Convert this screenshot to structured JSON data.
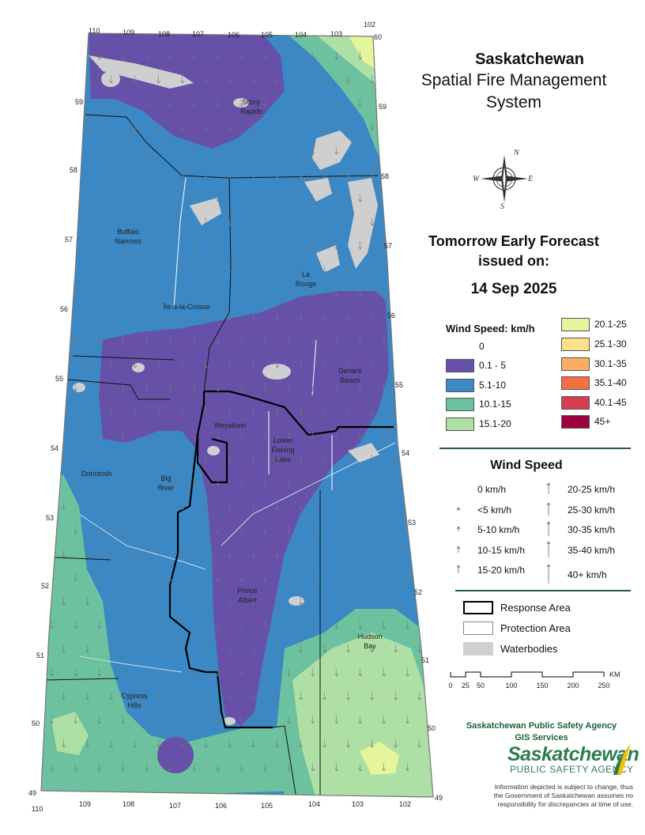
{
  "title": {
    "line1": "Saskatchewan",
    "line2": "Spatial Fire Management",
    "line3": "System"
  },
  "forecast": {
    "line1": "Tomorrow Early Forecast",
    "line2": "issued on:",
    "date": "14 Sep 2025"
  },
  "compass": {
    "n": "N",
    "s": "S",
    "e": "E",
    "w": "W"
  },
  "wind_speed_legend": {
    "title": "Wind Speed: km/h",
    "classes": [
      {
        "label": "0",
        "color": "#ffffff"
      },
      {
        "label": "0.1 - 5",
        "color": "#6650a8"
      },
      {
        "label": "5.1-10",
        "color": "#3b88c4"
      },
      {
        "label": "10.1-15",
        "color": "#6cc29e"
      },
      {
        "label": "15.1-20",
        "color": "#aee0a5"
      },
      {
        "label": "20.1-25",
        "color": "#e4f59c"
      },
      {
        "label": "25.1-30",
        "color": "#fde08a"
      },
      {
        "label": "30.1-35",
        "color": "#fbad62"
      },
      {
        "label": "35.1-40",
        "color": "#f46d43"
      },
      {
        "label": "40.1-45",
        "color": "#d53e4f"
      },
      {
        "label": "45+",
        "color": "#9e0142"
      }
    ]
  },
  "wind_arrow_legend": {
    "title": "Wind Speed",
    "items": [
      "0 km/h",
      "<5 km/h",
      "5-10 km/h",
      "10-15 km/h",
      "15-20 km/h",
      "20-25 km/h",
      "25-30 km/h",
      "30-35 km/h",
      "35-40 km/h",
      "40+ km/h"
    ]
  },
  "area_legend": {
    "response": "Response Area",
    "protection": "Protection Area",
    "water": "Waterbodies",
    "water_color": "#cfcfcf"
  },
  "scale_bar": {
    "unit": "KM",
    "ticks": [
      "0",
      "25",
      "50",
      "100",
      "150",
      "200",
      "250"
    ]
  },
  "agency": {
    "line1": "Saskatchewan Public Safety Agency",
    "line2": "GIS  Services",
    "logo_line1": "Saskatchewan",
    "logo_line2": "PUBLIC SAFETY AGENCY",
    "brand_color": "#2e7d4f"
  },
  "disclaimer": {
    "line1": "Information depicted is subject to change, thus",
    "line2": "the Government of Saskatchewan assumes no",
    "line3": "responsibility for discrepancies at time of use."
  },
  "map": {
    "towns": [
      {
        "line1": "Stony",
        "line2": "Rapids"
      },
      {
        "line1": "Buffalo",
        "line2": "Narrows"
      },
      {
        "line1": "La",
        "line2": "Ronge"
      },
      {
        "line1": "Île-à-la-Crosse",
        "line2": ""
      },
      {
        "line1": "Denare",
        "line2": "Beach"
      },
      {
        "line1": "Weyakwin",
        "line2": ""
      },
      {
        "line1": "Lower",
        "line2": "Fishing",
        "line3": "Lake"
      },
      {
        "line1": "Dorintosh",
        "line2": ""
      },
      {
        "line1": "Big",
        "line2": "River"
      },
      {
        "line1": "Prince",
        "line2": "Albert"
      },
      {
        "line1": "Hudson",
        "line2": "Bay"
      },
      {
        "line1": "Cypress",
        "line2": "Hills"
      }
    ],
    "longitude_top": [
      "110",
      "109",
      "108",
      "107",
      "106",
      "105",
      "104",
      "103",
      "102"
    ],
    "longitude_bottom": [
      "110",
      "109",
      "108",
      "107",
      "106",
      "105",
      "104",
      "103",
      "102"
    ],
    "latitude_left": [
      "59",
      "58",
      "57",
      "56",
      "55",
      "54",
      "53",
      "52",
      "51",
      "50",
      "49"
    ],
    "latitude_right": [
      "60",
      "59",
      "58",
      "57",
      "56",
      "55",
      "54",
      "53",
      "52",
      "51",
      "50",
      "49"
    ]
  }
}
